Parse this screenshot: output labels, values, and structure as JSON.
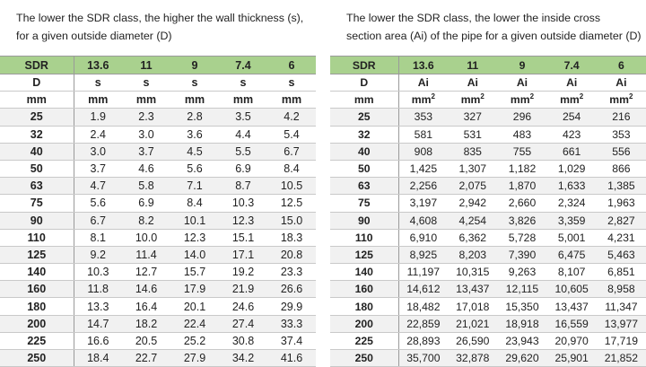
{
  "left": {
    "caption": [
      "The lower the SDR class, the higher the wall thickness (s),",
      "for a given outside diameter (D)"
    ],
    "sdr_label": "SDR",
    "sdr_values": [
      "13.6",
      "11",
      "9",
      "7.4",
      "6"
    ],
    "d_label": "D",
    "col_symbol": "s",
    "unit_d": "mm",
    "unit_col": "mm",
    "rows": [
      [
        "25",
        "1.9",
        "2.3",
        "2.8",
        "3.5",
        "4.2"
      ],
      [
        "32",
        "2.4",
        "3.0",
        "3.6",
        "4.4",
        "5.4"
      ],
      [
        "40",
        "3.0",
        "3.7",
        "4.5",
        "5.5",
        "6.7"
      ],
      [
        "50",
        "3.7",
        "4.6",
        "5.6",
        "6.9",
        "8.4"
      ],
      [
        "63",
        "4.7",
        "5.8",
        "7.1",
        "8.7",
        "10.5"
      ],
      [
        "75",
        "5.6",
        "6.9",
        "8.4",
        "10.3",
        "12.5"
      ],
      [
        "90",
        "6.7",
        "8.2",
        "10.1",
        "12.3",
        "15.0"
      ],
      [
        "110",
        "8.1",
        "10.0",
        "12.3",
        "15.1",
        "18.3"
      ],
      [
        "125",
        "9.2",
        "11.4",
        "14.0",
        "17.1",
        "20.8"
      ],
      [
        "140",
        "10.3",
        "12.7",
        "15.7",
        "19.2",
        "23.3"
      ],
      [
        "160",
        "11.8",
        "14.6",
        "17.9",
        "21.9",
        "26.6"
      ],
      [
        "180",
        "13.3",
        "16.4",
        "20.1",
        "24.6",
        "29.9"
      ],
      [
        "200",
        "14.7",
        "18.2",
        "22.4",
        "27.4",
        "33.3"
      ],
      [
        "225",
        "16.6",
        "20.5",
        "25.2",
        "30.8",
        "37.4"
      ],
      [
        "250",
        "18.4",
        "22.7",
        "27.9",
        "34.2",
        "41.6"
      ]
    ]
  },
  "right": {
    "caption": [
      "The lower the SDR class, the lower the inside cross",
      "section area (Ai) of the pipe for a given outside diameter (D)"
    ],
    "sdr_label": "SDR",
    "sdr_values": [
      "13.6",
      "11",
      "9",
      "7.4",
      "6"
    ],
    "d_label": "D",
    "col_symbol": "Ai",
    "unit_d": "mm",
    "unit_col": "mm",
    "unit_sup": "2",
    "rows": [
      [
        "25",
        "353",
        "327",
        "296",
        "254",
        "216"
      ],
      [
        "32",
        "581",
        "531",
        "483",
        "423",
        "353"
      ],
      [
        "40",
        "908",
        "835",
        "755",
        "661",
        "556"
      ],
      [
        "50",
        "1,425",
        "1,307",
        "1,182",
        "1,029",
        "866"
      ],
      [
        "63",
        "2,256",
        "2,075",
        "1,870",
        "1,633",
        "1,385"
      ],
      [
        "75",
        "3,197",
        "2,942",
        "2,660",
        "2,324",
        "1,963"
      ],
      [
        "90",
        "4,608",
        "4,254",
        "3,826",
        "3,359",
        "2,827"
      ],
      [
        "110",
        "6,910",
        "6,362",
        "5,728",
        "5,001",
        "4,231"
      ],
      [
        "125",
        "8,925",
        "8,203",
        "7,390",
        "6,475",
        "5,463"
      ],
      [
        "140",
        "11,197",
        "10,315",
        "9,263",
        "8,107",
        "6,851"
      ],
      [
        "160",
        "14,612",
        "13,437",
        "12,115",
        "10,605",
        "8,958"
      ],
      [
        "180",
        "18,482",
        "17,018",
        "15,350",
        "13,437",
        "11,347"
      ],
      [
        "200",
        "22,859",
        "21,021",
        "18,918",
        "16,559",
        "13,977"
      ],
      [
        "225",
        "28,893",
        "26,590",
        "23,943",
        "20,970",
        "17,719"
      ],
      [
        "250",
        "35,700",
        "32,878",
        "29,620",
        "25,901",
        "21,852"
      ]
    ]
  }
}
